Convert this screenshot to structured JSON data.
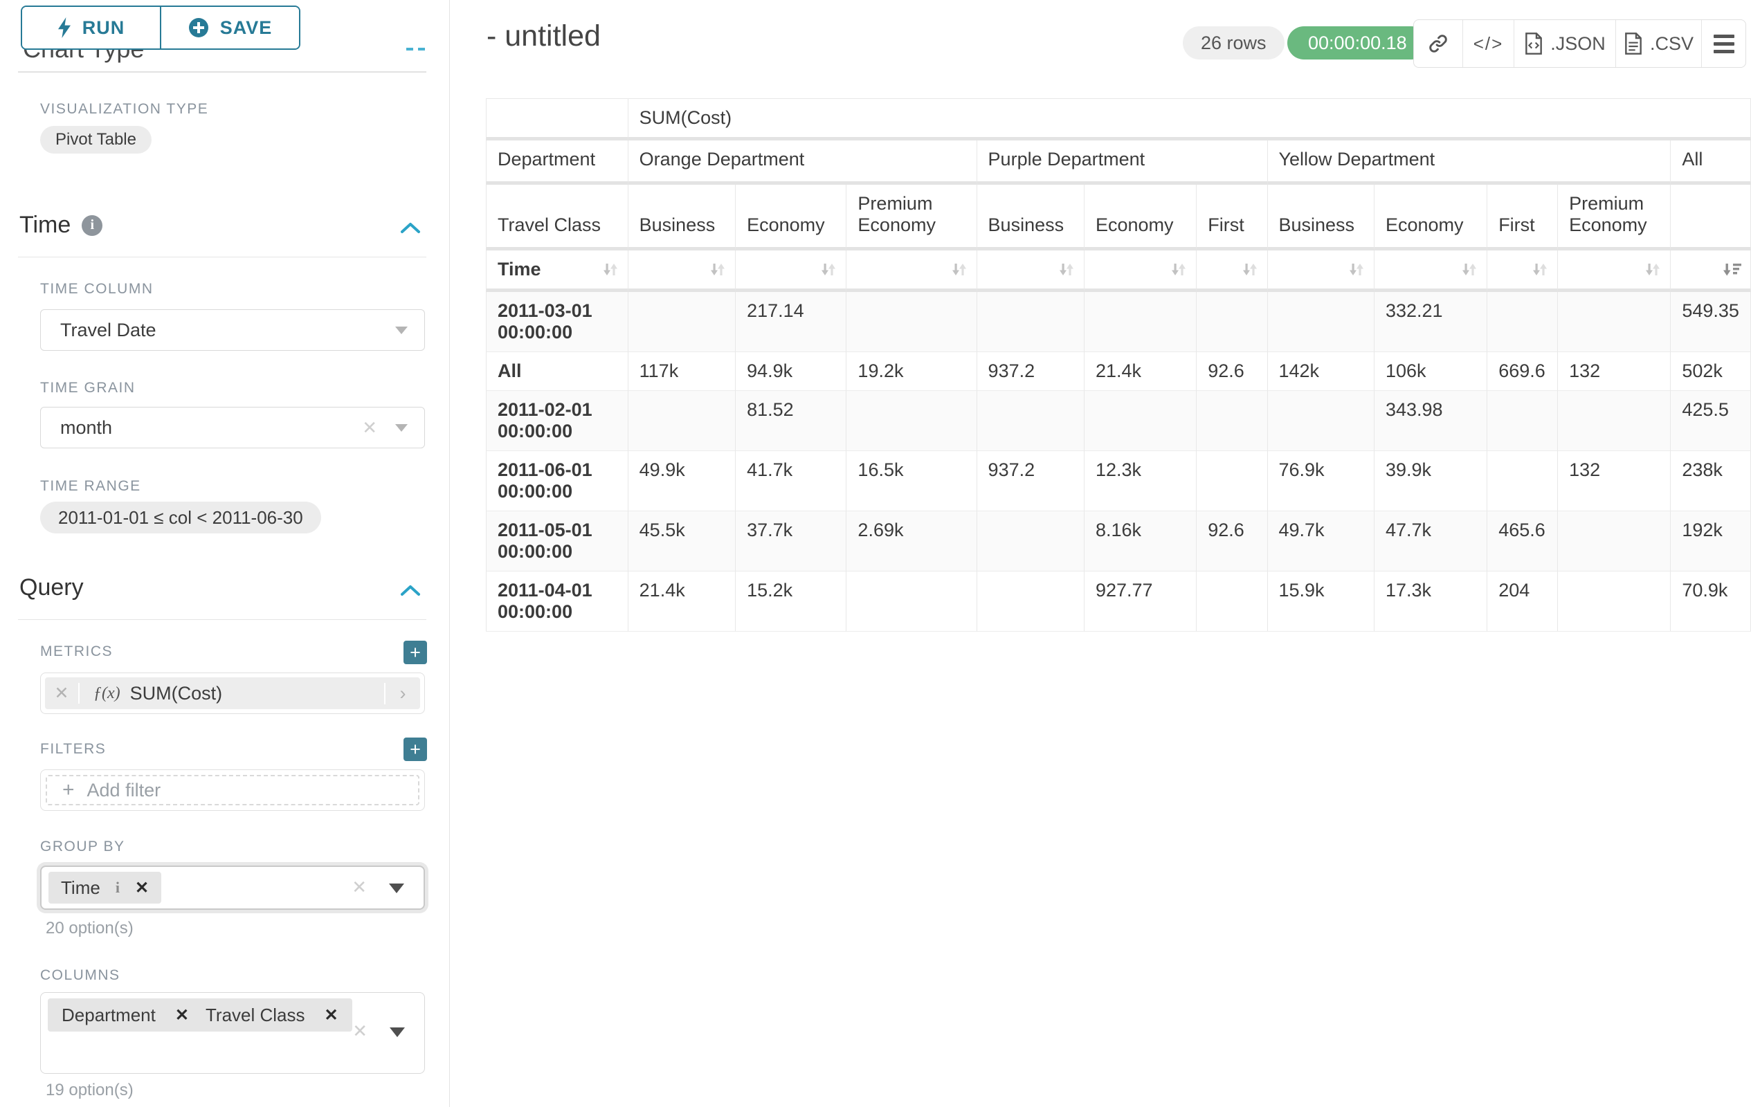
{
  "sidebar": {
    "run_label": "RUN",
    "save_label": "SAVE",
    "chart_type_heading": "Chart Type",
    "visualization_type_label": "VISUALIZATION TYPE",
    "visualization_type_value": "Pivot Table",
    "time_section": {
      "title": "Time",
      "time_column_label": "TIME COLUMN",
      "time_column_value": "Travel Date",
      "time_grain_label": "TIME GRAIN",
      "time_grain_value": "month",
      "time_range_label": "TIME RANGE",
      "time_range_value": "2011-01-01 ≤ col < 2011-06-30"
    },
    "query_section": {
      "title": "Query",
      "metrics_label": "METRICS",
      "metric_fx": "ƒ(x)",
      "metric_value": "SUM(Cost)",
      "filters_label": "FILTERS",
      "add_filter_label": "Add filter",
      "group_by_label": "GROUP BY",
      "group_by_tags": [
        {
          "label": "Time",
          "has_info": true
        }
      ],
      "group_by_options_note": "20 option(s)",
      "columns_label": "COLUMNS",
      "columns_tags": [
        {
          "label": "Department"
        },
        {
          "label": "Travel Class"
        }
      ],
      "columns_options_note": "19 option(s)"
    }
  },
  "header": {
    "title": "- untitled",
    "row_count_badge": "26 rows",
    "timer_badge": "00:00:00.18",
    "timer_color": "#6ab97f",
    "json_export_label": ".JSON",
    "csv_export_label": ".CSV"
  },
  "chart_data": {
    "type": "table",
    "metric_header": "SUM(Cost)",
    "corner_labels": {
      "department": "Department",
      "travel_class": "Travel Class",
      "time": "Time"
    },
    "column_groups": [
      {
        "label": "Orange Department",
        "columns": [
          "Business",
          "Economy",
          "Premium Economy"
        ]
      },
      {
        "label": "Purple Department",
        "columns": [
          "Business",
          "Economy",
          "First"
        ]
      },
      {
        "label": "Yellow Department",
        "columns": [
          "Business",
          "Economy",
          "First",
          "Premium Economy"
        ]
      },
      {
        "label": "All",
        "columns": [
          ""
        ]
      }
    ],
    "sort": {
      "column": "All",
      "direction": "desc"
    },
    "rows": [
      {
        "label": "2011-03-01 00:00:00",
        "values": [
          "",
          "217.14",
          "",
          "",
          "",
          "",
          "",
          "332.21",
          "",
          "",
          "549.35"
        ]
      },
      {
        "label": "All",
        "values": [
          "117k",
          "94.9k",
          "19.2k",
          "937.2",
          "21.4k",
          "92.6",
          "142k",
          "106k",
          "669.6",
          "132",
          "502k"
        ]
      },
      {
        "label": "2011-02-01 00:00:00",
        "values": [
          "",
          "81.52",
          "",
          "",
          "",
          "",
          "",
          "343.98",
          "",
          "",
          "425.5"
        ]
      },
      {
        "label": "2011-06-01 00:00:00",
        "values": [
          "49.9k",
          "41.7k",
          "16.5k",
          "937.2",
          "12.3k",
          "",
          "76.9k",
          "39.9k",
          "",
          "132",
          "238k"
        ]
      },
      {
        "label": "2011-05-01 00:00:00",
        "values": [
          "45.5k",
          "37.7k",
          "2.69k",
          "",
          "8.16k",
          "92.6",
          "49.7k",
          "47.7k",
          "465.6",
          "",
          "192k"
        ]
      },
      {
        "label": "2011-04-01 00:00:00",
        "values": [
          "21.4k",
          "15.2k",
          "",
          "",
          "927.77",
          "",
          "15.9k",
          "17.3k",
          "204",
          "",
          "70.9k"
        ]
      }
    ]
  }
}
